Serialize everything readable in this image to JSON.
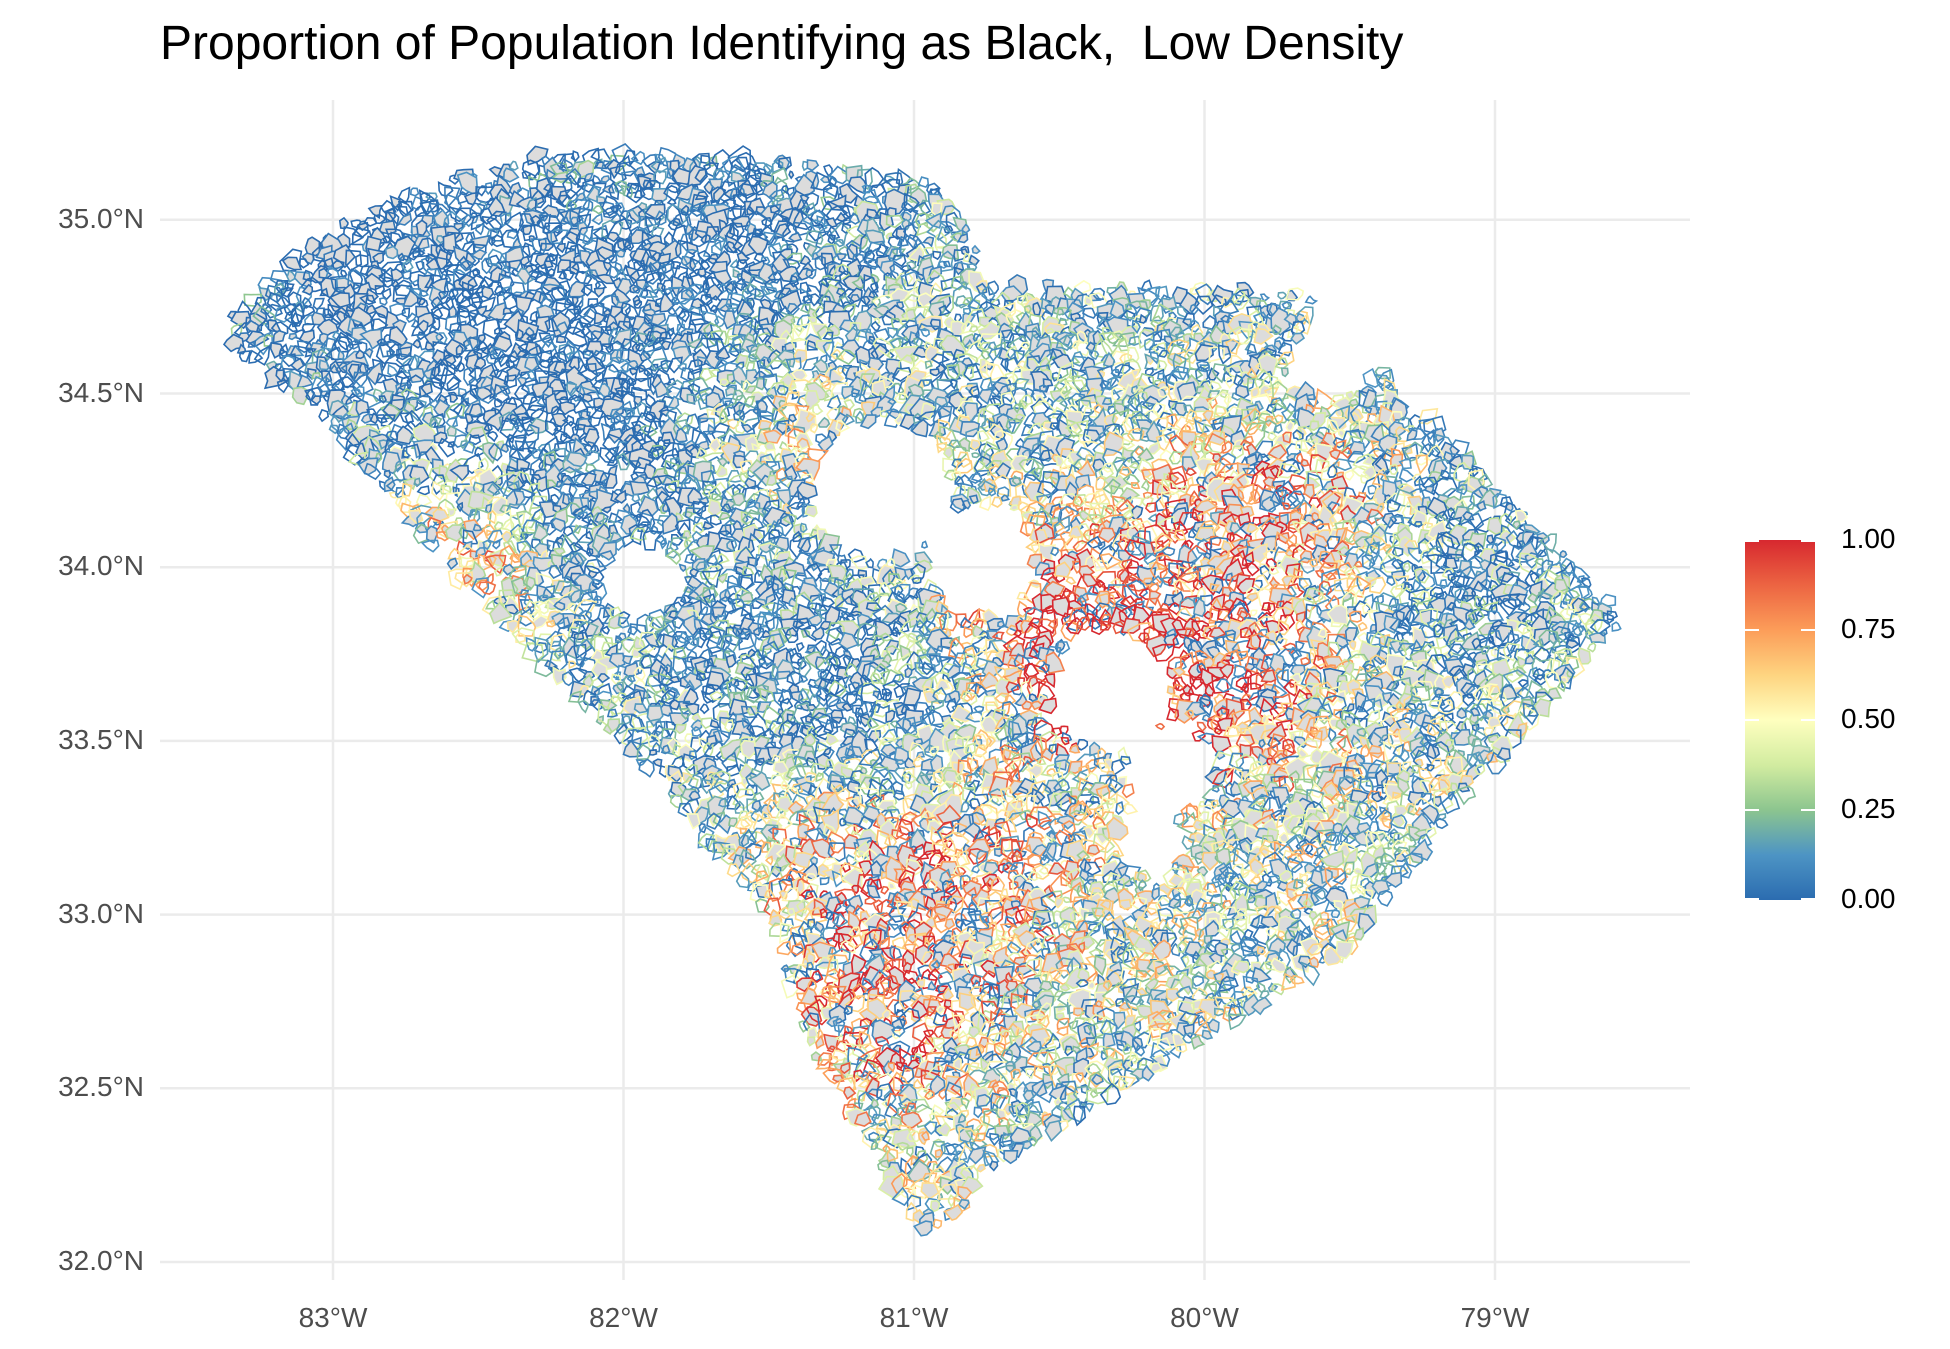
{
  "title": "Proportion of Population Identifying as Black,  Low Density",
  "chart_data": {
    "type": "choropleth",
    "title": "Proportion of Population Identifying as Black,  Low Density",
    "region": "South Carolina",
    "xlim": [
      -83.5,
      -78.45
    ],
    "ylim": [
      32.0,
      35.3
    ],
    "grid": true,
    "x_ticks": [
      {
        "value": -83,
        "label": "83°W"
      },
      {
        "value": -82,
        "label": "82°W"
      },
      {
        "value": -81,
        "label": "81°W"
      },
      {
        "value": -80,
        "label": "80°W"
      },
      {
        "value": -79,
        "label": "79°W"
      }
    ],
    "y_ticks": [
      {
        "value": 32.0,
        "label": "32.0°N"
      },
      {
        "value": 32.5,
        "label": "32.5°N"
      },
      {
        "value": 33.0,
        "label": "33.0°N"
      },
      {
        "value": 33.5,
        "label": "33.5°N"
      },
      {
        "value": 34.0,
        "label": "34.0°N"
      },
      {
        "value": 34.5,
        "label": "34.5°N"
      },
      {
        "value": 35.0,
        "label": "35.0°N"
      }
    ],
    "outline_lonlat": [
      [
        -83.35,
        34.72
      ],
      [
        -83.05,
        34.95
      ],
      [
        -82.78,
        35.07
      ],
      [
        -82.3,
        35.19
      ],
      [
        -81.45,
        35.17
      ],
      [
        -81.04,
        35.14
      ],
      [
        -80.93,
        35.1
      ],
      [
        -80.78,
        34.94
      ],
      [
        -80.8,
        34.82
      ],
      [
        -79.67,
        34.8
      ],
      [
        -78.55,
        33.86
      ],
      [
        -79.2,
        33.24
      ],
      [
        -79.5,
        32.9
      ],
      [
        -80.3,
        32.48
      ],
      [
        -80.67,
        32.3
      ],
      [
        -80.9,
        32.1
      ],
      [
        -81.0,
        32.08
      ],
      [
        -81.2,
        32.4
      ],
      [
        -81.35,
        32.6
      ],
      [
        -81.5,
        33.0
      ],
      [
        -81.9,
        33.4
      ],
      [
        -82.2,
        33.65
      ],
      [
        -82.6,
        34.0
      ],
      [
        -82.75,
        34.15
      ],
      [
        -83.05,
        34.45
      ],
      [
        -83.35,
        34.63
      ]
    ],
    "legend": {
      "position": "right",
      "ticks": [
        {
          "value": 1.0,
          "label": "1.00"
        },
        {
          "value": 0.75,
          "label": "0.75"
        },
        {
          "value": 0.5,
          "label": "0.50"
        },
        {
          "value": 0.25,
          "label": "0.25"
        },
        {
          "value": 0.0,
          "label": "0.00"
        }
      ],
      "palette": [
        "#2b6cb0",
        "#4d94c4",
        "#8cc58f",
        "#d2eca0",
        "#ffffbf",
        "#fed480",
        "#fc9d59",
        "#ec6442",
        "#d7282f"
      ],
      "min": 0.0,
      "max": 1.0
    },
    "hotspots": [
      {
        "lon": -80.35,
        "lat": 33.7,
        "value": 0.8
      },
      {
        "lon": -79.85,
        "lat": 33.65,
        "value": 0.85
      },
      {
        "lon": -80.6,
        "lat": 33.9,
        "value": 0.75
      },
      {
        "lon": -81.1,
        "lat": 32.75,
        "value": 0.8
      },
      {
        "lon": -81.3,
        "lat": 33.2,
        "value": 0.7
      },
      {
        "lon": -81.5,
        "lat": 34.4,
        "value": 0.7
      },
      {
        "lon": -82.55,
        "lat": 34.0,
        "value": 0.8
      },
      {
        "lon": -80.0,
        "lat": 34.15,
        "value": 0.7
      },
      {
        "lon": -79.55,
        "lat": 34.15,
        "value": 0.65
      },
      {
        "lon": -80.75,
        "lat": 33.1,
        "value": 0.7
      }
    ],
    "coldspots": [
      {
        "lon": -82.9,
        "lat": 34.85,
        "value": 0.02
      },
      {
        "lon": -82.35,
        "lat": 34.75,
        "value": 0.05
      },
      {
        "lon": -81.95,
        "lat": 34.3,
        "value": 0.08
      },
      {
        "lon": -81.6,
        "lat": 34.95,
        "value": 0.1
      },
      {
        "lon": -81.35,
        "lat": 33.65,
        "value": 0.1
      },
      {
        "lon": -79.1,
        "lat": 33.95,
        "value": 0.12
      }
    ]
  }
}
